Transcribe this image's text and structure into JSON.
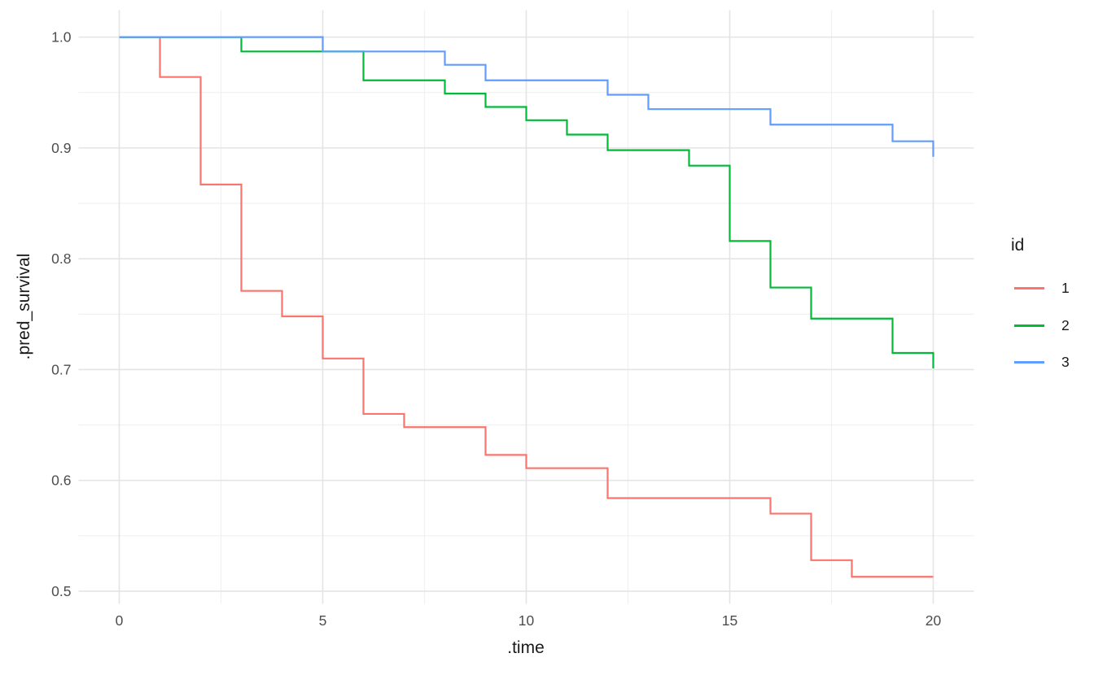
{
  "chart_data": {
    "type": "line",
    "subtype": "step-survival-curves",
    "title": "",
    "xlabel": ".time",
    "ylabel": ".pred_survival",
    "legend_title": "id",
    "legend_position": "right",
    "grid": true,
    "x_domain": [
      -1,
      21
    ],
    "y_domain": [
      0.4886,
      1.0243
    ],
    "x_ticks": [
      0,
      5,
      10,
      15,
      20
    ],
    "x_tick_labels": [
      "0",
      "5",
      "10",
      "15",
      "20"
    ],
    "y_ticks": [
      0.5,
      0.6,
      0.7,
      0.8,
      0.9,
      1.0
    ],
    "y_tick_labels": [
      "0.5",
      "0.6",
      "0.7",
      "0.8",
      "0.9",
      "1.0"
    ],
    "x_minor_breaks": [
      2.5,
      7.5,
      12.5,
      17.5
    ],
    "y_minor_breaks": [
      0.55,
      0.65,
      0.75,
      0.85,
      0.95
    ],
    "series": [
      {
        "name": "1",
        "color": "#F8766D",
        "points": [
          [
            0,
            1.0
          ],
          [
            1,
            0.964
          ],
          [
            2,
            0.867
          ],
          [
            3,
            0.771
          ],
          [
            4,
            0.748
          ],
          [
            5,
            0.71
          ],
          [
            6,
            0.66
          ],
          [
            7,
            0.648
          ],
          [
            9,
            0.623
          ],
          [
            10,
            0.611
          ],
          [
            12,
            0.584
          ],
          [
            16,
            0.57
          ],
          [
            17,
            0.528
          ],
          [
            18,
            0.513
          ],
          [
            20,
            0.513
          ]
        ]
      },
      {
        "name": "2",
        "color": "#00BA38",
        "points": [
          [
            0,
            1.0
          ],
          [
            3,
            0.987
          ],
          [
            6,
            0.961
          ],
          [
            8,
            0.949
          ],
          [
            9,
            0.937
          ],
          [
            10,
            0.925
          ],
          [
            11,
            0.912
          ],
          [
            12,
            0.898
          ],
          [
            14,
            0.884
          ],
          [
            15,
            0.816
          ],
          [
            16,
            0.774
          ],
          [
            17,
            0.746
          ],
          [
            19,
            0.715
          ],
          [
            20,
            0.701
          ]
        ]
      },
      {
        "name": "3",
        "color": "#619CFF",
        "points": [
          [
            0,
            1.0
          ],
          [
            5,
            0.987
          ],
          [
            8,
            0.975
          ],
          [
            9,
            0.961
          ],
          [
            12,
            0.948
          ],
          [
            13,
            0.935
          ],
          [
            16,
            0.921
          ],
          [
            19,
            0.906
          ],
          [
            20,
            0.892
          ]
        ]
      }
    ],
    "style": {
      "background": "#FFFFFF",
      "grid_major_color": "#E4E4E4",
      "grid_minor_color": "#F0F0F0",
      "tick_label_color": "#4D4D4D",
      "axis_title_color": "#1A1A1A",
      "line_width": 2.2
    }
  }
}
